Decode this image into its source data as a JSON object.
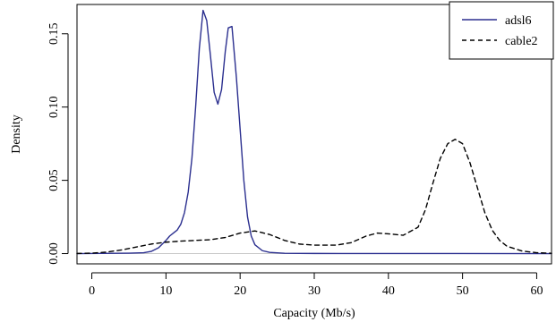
{
  "chart_data": {
    "type": "line",
    "title": "",
    "xlabel": "Capacity (Mb/s)",
    "ylabel": "Density",
    "xlim": [
      -2,
      62
    ],
    "ylim": [
      -0.007,
      0.17
    ],
    "x_ticks": [
      0,
      10,
      20,
      30,
      40,
      50,
      60
    ],
    "x_tick_labels": [
      "0",
      "10",
      "20",
      "30",
      "40",
      "50",
      "60"
    ],
    "y_ticks": [
      0.0,
      0.05,
      0.1,
      0.15
    ],
    "y_tick_labels": [
      "0.00",
      "0.05",
      "0.10",
      "0.15"
    ],
    "grid": false,
    "legend_position": "top-right",
    "baseline_y": 0,
    "series": [
      {
        "name": "adsl6",
        "color": "#2b2f8f",
        "dash": "solid",
        "points": [
          [
            -2,
            0.0
          ],
          [
            5,
            0.0003
          ],
          [
            7,
            0.0006
          ],
          [
            8,
            0.0015
          ],
          [
            9,
            0.004
          ],
          [
            10,
            0.009
          ],
          [
            10.5,
            0.012
          ],
          [
            11,
            0.014
          ],
          [
            11.5,
            0.016
          ],
          [
            12,
            0.02
          ],
          [
            12.5,
            0.028
          ],
          [
            13,
            0.042
          ],
          [
            13.5,
            0.065
          ],
          [
            14,
            0.1
          ],
          [
            14.5,
            0.14
          ],
          [
            15,
            0.166
          ],
          [
            15.5,
            0.159
          ],
          [
            16,
            0.135
          ],
          [
            16.5,
            0.11
          ],
          [
            17,
            0.102
          ],
          [
            17.5,
            0.112
          ],
          [
            18,
            0.138
          ],
          [
            18.4,
            0.154
          ],
          [
            18.9,
            0.155
          ],
          [
            19.5,
            0.12
          ],
          [
            20,
            0.085
          ],
          [
            20.5,
            0.05
          ],
          [
            21,
            0.025
          ],
          [
            21.5,
            0.012
          ],
          [
            22,
            0.006
          ],
          [
            23,
            0.002
          ],
          [
            24,
            0.0008
          ],
          [
            26,
            0.0002
          ],
          [
            30,
            0.0001
          ],
          [
            62,
            0.0
          ]
        ]
      },
      {
        "name": "cable2",
        "color": "#000000",
        "dash": "dashed",
        "points": [
          [
            -2,
            0.0001
          ],
          [
            0,
            0.0003
          ],
          [
            2,
            0.001
          ],
          [
            4,
            0.0025
          ],
          [
            6,
            0.0045
          ],
          [
            8,
            0.0065
          ],
          [
            10,
            0.0078
          ],
          [
            12,
            0.0085
          ],
          [
            14,
            0.009
          ],
          [
            16,
            0.0095
          ],
          [
            18,
            0.011
          ],
          [
            20,
            0.014
          ],
          [
            22,
            0.0155
          ],
          [
            24,
            0.013
          ],
          [
            26,
            0.009
          ],
          [
            28,
            0.0065
          ],
          [
            30,
            0.0058
          ],
          [
            33,
            0.0058
          ],
          [
            35,
            0.0075
          ],
          [
            37,
            0.012
          ],
          [
            38.5,
            0.014
          ],
          [
            40,
            0.0135
          ],
          [
            42,
            0.0125
          ],
          [
            44,
            0.018
          ],
          [
            45,
            0.03
          ],
          [
            46,
            0.048
          ],
          [
            47,
            0.065
          ],
          [
            48,
            0.075
          ],
          [
            49,
            0.078
          ],
          [
            50,
            0.075
          ],
          [
            51,
            0.062
          ],
          [
            52,
            0.045
          ],
          [
            53,
            0.028
          ],
          [
            54,
            0.016
          ],
          [
            55,
            0.009
          ],
          [
            56,
            0.005
          ],
          [
            58,
            0.0018
          ],
          [
            60,
            0.0006
          ],
          [
            62,
            0.0002
          ]
        ]
      }
    ]
  }
}
